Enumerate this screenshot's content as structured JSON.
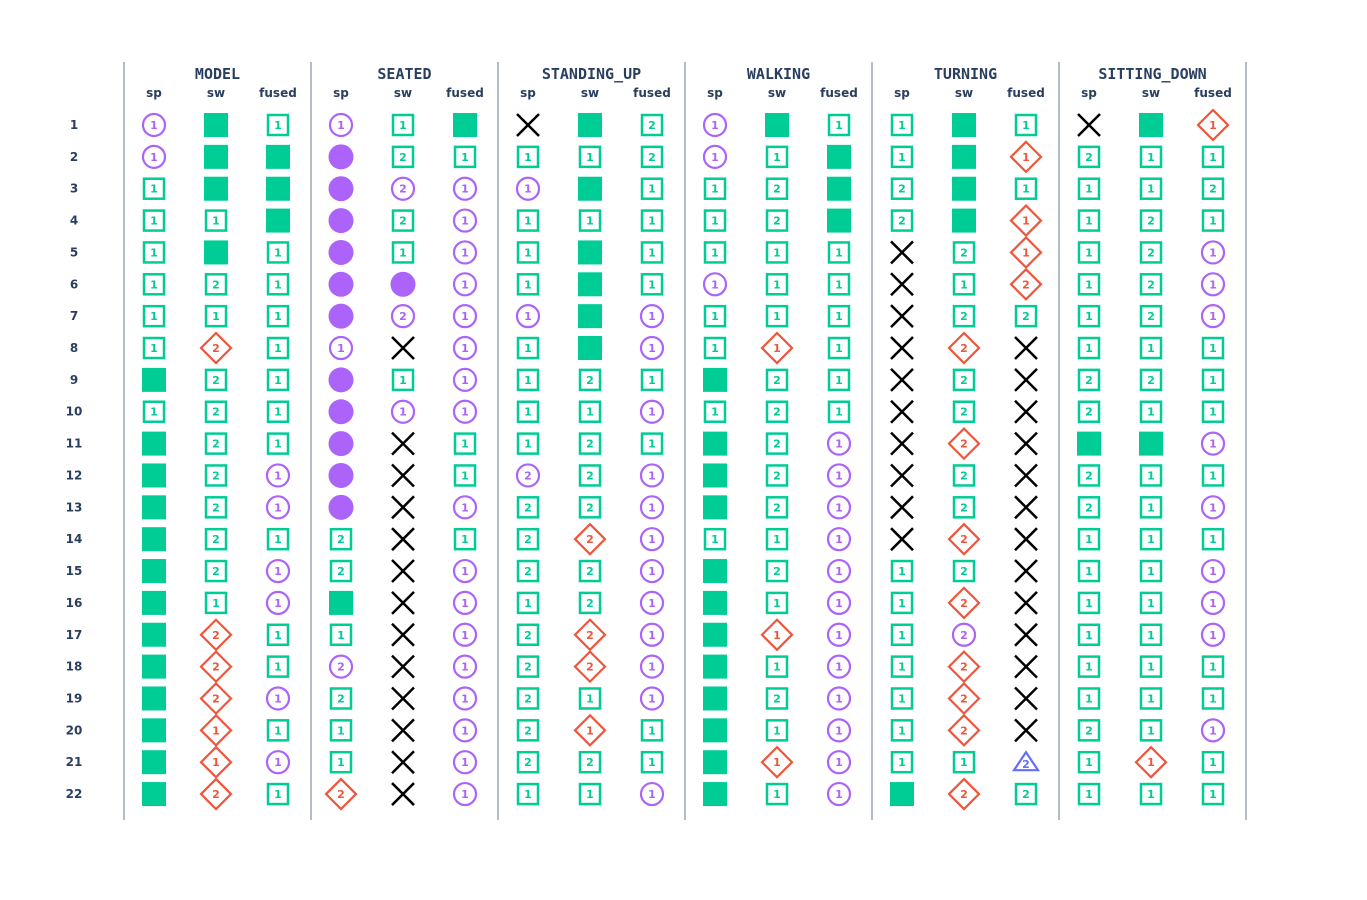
{
  "chart_data": {
    "type": "table",
    "title": "",
    "groups": [
      {
        "name": "MODEL",
        "subcols": [
          "sp",
          "sw",
          "fused"
        ],
        "cells": [
          [
            "C1",
            "S",
            "B1"
          ],
          [
            "C1",
            "S",
            "S"
          ],
          [
            "B1",
            "S",
            "S"
          ],
          [
            "B1",
            "B1",
            "S"
          ],
          [
            "B1",
            "S",
            "B1"
          ],
          [
            "B1",
            "B2",
            "B1"
          ],
          [
            "B1",
            "B1",
            "B1"
          ],
          [
            "B1",
            "D2",
            "B1"
          ],
          [
            "S",
            "B2",
            "B1"
          ],
          [
            "B1",
            "B2",
            "B1"
          ],
          [
            "S",
            "B2",
            "B1"
          ],
          [
            "S",
            "B2",
            "C1"
          ],
          [
            "S",
            "B2",
            "C1"
          ],
          [
            "S",
            "B2",
            "B1"
          ],
          [
            "S",
            "B2",
            "C1"
          ],
          [
            "S",
            "B1",
            "C1"
          ],
          [
            "S",
            "D2",
            "B1"
          ],
          [
            "S",
            "D2",
            "B1"
          ],
          [
            "S",
            "D2",
            "C1"
          ],
          [
            "S",
            "D1",
            "B1"
          ],
          [
            "S",
            "D1",
            "C1"
          ],
          [
            "S",
            "D2",
            "B1"
          ]
        ]
      },
      {
        "name": "SEATED",
        "subcols": [
          "sp",
          "sw",
          "fused"
        ],
        "cells": [
          [
            "C1",
            "B1",
            "S"
          ],
          [
            "F",
            "B2",
            "B1"
          ],
          [
            "F",
            "C2",
            "C1"
          ],
          [
            "F",
            "B2",
            "C1"
          ],
          [
            "F",
            "B1",
            "C1"
          ],
          [
            "F",
            "F",
            "C1"
          ],
          [
            "F",
            "C2",
            "C1"
          ],
          [
            "C1",
            "X",
            "C1"
          ],
          [
            "F",
            "B1",
            "C1"
          ],
          [
            "F",
            "C1",
            "C1"
          ],
          [
            "F",
            "X",
            "B1"
          ],
          [
            "F",
            "X",
            "B1"
          ],
          [
            "F",
            "X",
            "C1"
          ],
          [
            "B2",
            "X",
            "B1"
          ],
          [
            "B2",
            "X",
            "C1"
          ],
          [
            "S",
            "X",
            "C1"
          ],
          [
            "B1",
            "X",
            "C1"
          ],
          [
            "C2",
            "X",
            "C1"
          ],
          [
            "B2",
            "X",
            "C1"
          ],
          [
            "B1",
            "X",
            "C1"
          ],
          [
            "B1",
            "X",
            "C1"
          ],
          [
            "D2",
            "X",
            "C1"
          ]
        ]
      },
      {
        "name": "STANDING_UP",
        "subcols": [
          "sp",
          "sw",
          "fused"
        ],
        "cells": [
          [
            "X",
            "S",
            "B2"
          ],
          [
            "B1",
            "B1",
            "B2"
          ],
          [
            "C1",
            "S",
            "B1"
          ],
          [
            "B1",
            "B1",
            "B1"
          ],
          [
            "B1",
            "S",
            "B1"
          ],
          [
            "B1",
            "S",
            "B1"
          ],
          [
            "C1",
            "S",
            "C1"
          ],
          [
            "B1",
            "S",
            "C1"
          ],
          [
            "B1",
            "B2",
            "B1"
          ],
          [
            "B1",
            "B1",
            "C1"
          ],
          [
            "B1",
            "B2",
            "B1"
          ],
          [
            "C2",
            "B2",
            "C1"
          ],
          [
            "B2",
            "B2",
            "C1"
          ],
          [
            "B2",
            "D2",
            "C1"
          ],
          [
            "B2",
            "B2",
            "C1"
          ],
          [
            "B1",
            "B2",
            "C1"
          ],
          [
            "B2",
            "D2",
            "C1"
          ],
          [
            "B2",
            "D2",
            "C1"
          ],
          [
            "B2",
            "B1",
            "C1"
          ],
          [
            "B2",
            "D1",
            "B1"
          ],
          [
            "B2",
            "B2",
            "B1"
          ],
          [
            "B1",
            "B1",
            "C1"
          ]
        ]
      },
      {
        "name": "WALKING",
        "subcols": [
          "sp",
          "sw",
          "fused"
        ],
        "cells": [
          [
            "C1",
            "S",
            "B1"
          ],
          [
            "C1",
            "B1",
            "S"
          ],
          [
            "B1",
            "B2",
            "S"
          ],
          [
            "B1",
            "B2",
            "S"
          ],
          [
            "B1",
            "B1",
            "B1"
          ],
          [
            "C1",
            "B1",
            "B1"
          ],
          [
            "B1",
            "B1",
            "B1"
          ],
          [
            "B1",
            "D1",
            "B1"
          ],
          [
            "S",
            "B2",
            "B1"
          ],
          [
            "B1",
            "B2",
            "B1"
          ],
          [
            "S",
            "B2",
            "C1"
          ],
          [
            "S",
            "B2",
            "C1"
          ],
          [
            "S",
            "B2",
            "C1"
          ],
          [
            "B1",
            "B1",
            "C1"
          ],
          [
            "S",
            "B2",
            "C1"
          ],
          [
            "S",
            "B1",
            "C1"
          ],
          [
            "S",
            "D1",
            "C1"
          ],
          [
            "S",
            "B1",
            "C1"
          ],
          [
            "S",
            "B2",
            "C1"
          ],
          [
            "S",
            "B1",
            "C1"
          ],
          [
            "S",
            "D1",
            "C1"
          ],
          [
            "S",
            "B1",
            "C1"
          ]
        ]
      },
      {
        "name": "TURNING",
        "subcols": [
          "sp",
          "sw",
          "fused"
        ],
        "cells": [
          [
            "B1",
            "S",
            "B1"
          ],
          [
            "B1",
            "S",
            "D1"
          ],
          [
            "B2",
            "S",
            "B1"
          ],
          [
            "B2",
            "S",
            "D1"
          ],
          [
            "X",
            "B2",
            "D1"
          ],
          [
            "X",
            "B1",
            "D2"
          ],
          [
            "X",
            "B2",
            "B2"
          ],
          [
            "X",
            "D2",
            "X"
          ],
          [
            "X",
            "B2",
            "X"
          ],
          [
            "X",
            "B2",
            "X"
          ],
          [
            "X",
            "D2",
            "X"
          ],
          [
            "X",
            "B2",
            "X"
          ],
          [
            "X",
            "B2",
            "X"
          ],
          [
            "X",
            "D2",
            "X"
          ],
          [
            "B1",
            "B2",
            "X"
          ],
          [
            "B1",
            "D2",
            "X"
          ],
          [
            "B1",
            "C2",
            "X"
          ],
          [
            "B1",
            "D2",
            "X"
          ],
          [
            "B1",
            "D2",
            "X"
          ],
          [
            "B1",
            "D2",
            "X"
          ],
          [
            "B1",
            "B1",
            "T2"
          ],
          [
            "S",
            "D2",
            "B2"
          ]
        ]
      },
      {
        "name": "SITTING_DOWN",
        "subcols": [
          "sp",
          "sw",
          "fused"
        ],
        "cells": [
          [
            "X",
            "S",
            "D1"
          ],
          [
            "B2",
            "B1",
            "B1"
          ],
          [
            "B1",
            "B1",
            "B2"
          ],
          [
            "B1",
            "B2",
            "B1"
          ],
          [
            "B1",
            "B2",
            "C1"
          ],
          [
            "B1",
            "B2",
            "C1"
          ],
          [
            "B1",
            "B2",
            "C1"
          ],
          [
            "B1",
            "B1",
            "B1"
          ],
          [
            "B2",
            "B2",
            "B1"
          ],
          [
            "B2",
            "B1",
            "B1"
          ],
          [
            "S",
            "S",
            "C1"
          ],
          [
            "B2",
            "B1",
            "B1"
          ],
          [
            "B2",
            "B1",
            "C1"
          ],
          [
            "B1",
            "B1",
            "B1"
          ],
          [
            "B1",
            "B1",
            "C1"
          ],
          [
            "B1",
            "B1",
            "C1"
          ],
          [
            "B1",
            "B1",
            "C1"
          ],
          [
            "B1",
            "B1",
            "B1"
          ],
          [
            "B1",
            "B1",
            "B1"
          ],
          [
            "B2",
            "B1",
            "C1"
          ],
          [
            "B1",
            "D1",
            "B1"
          ],
          [
            "B1",
            "B1",
            "B1"
          ]
        ]
      }
    ],
    "rows": [
      "1",
      "2",
      "3",
      "4",
      "5",
      "6",
      "7",
      "8",
      "9",
      "10",
      "11",
      "12",
      "13",
      "14",
      "15",
      "16",
      "17",
      "18",
      "19",
      "20",
      "21",
      "22"
    ],
    "marker_colors": {
      "square": "#00cc96",
      "circle": "#ab63fa",
      "diamond": "#ef553b",
      "cross": "#000000",
      "triangle": "#636efa",
      "axis_text": "#2a3f5f",
      "divider": "#6b7a90"
    },
    "marker_codes": {
      "S": "filled-square",
      "F": "filled-circle",
      "B": "square-open-with-number",
      "C": "circle-open-with-number",
      "D": "diamond-open-with-number",
      "T": "triangle-open-with-number",
      "X": "cross"
    }
  }
}
